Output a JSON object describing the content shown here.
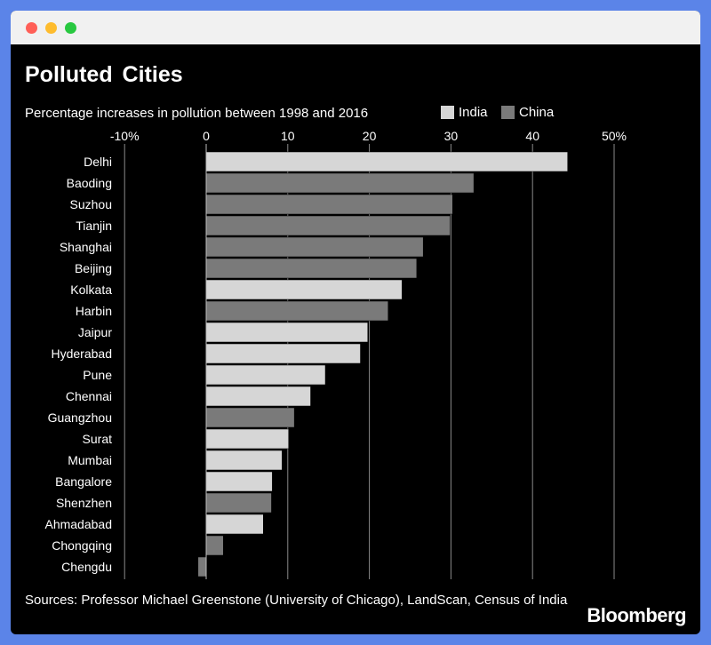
{
  "window": {
    "controls": [
      "close",
      "minimize",
      "zoom"
    ]
  },
  "chart_data": {
    "type": "bar",
    "orientation": "horizontal",
    "title": "Polluted Cities",
    "subtitle": "Percentage increases in pollution between 1998 and 2016",
    "legend": [
      {
        "name": "India",
        "color": "#d6d6d6"
      },
      {
        "name": "China",
        "color": "#7a7a7a"
      }
    ],
    "legend_position": "top-right",
    "x_ticks": [
      -10,
      0,
      10,
      20,
      30,
      40,
      50
    ],
    "x_tick_labels": [
      "-10%",
      "0",
      "10",
      "20",
      "30",
      "40",
      "50%"
    ],
    "xlim": [
      -10,
      50
    ],
    "grid": true,
    "categories": [
      "Delhi",
      "Baoding",
      "Suzhou",
      "Tianjin",
      "Shanghai",
      "Beijing",
      "Kolkata",
      "Harbin",
      "Jaipur",
      "Hyderabad",
      "Pune",
      "Chennai",
      "Guangzhou",
      "Surat",
      "Mumbai",
      "Bangalore",
      "Shenzhen",
      "Ahmadabad",
      "Chongqing",
      "Chengdu"
    ],
    "values": [
      44.3,
      32.8,
      30.2,
      29.9,
      26.6,
      25.8,
      24.0,
      22.3,
      19.8,
      18.9,
      14.6,
      12.8,
      10.8,
      10.1,
      9.3,
      8.1,
      8.0,
      7.0,
      2.1,
      -1.0
    ],
    "country": [
      "India",
      "China",
      "China",
      "China",
      "China",
      "China",
      "India",
      "China",
      "India",
      "India",
      "India",
      "India",
      "China",
      "India",
      "India",
      "India",
      "China",
      "India",
      "China",
      "China"
    ]
  },
  "footer": {
    "source": "Sources: Professor Michael Greenstone (University of Chicago), LandScan, Census of India",
    "brand": "Bloomberg"
  }
}
